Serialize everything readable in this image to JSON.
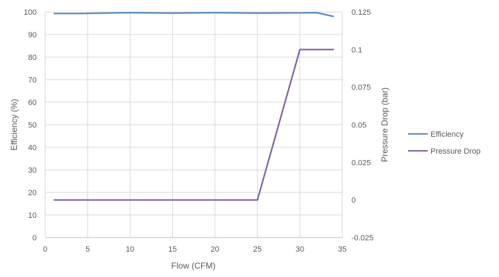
{
  "chart_data": {
    "type": "line",
    "title": "",
    "xlabel": "Flow (CFM)",
    "ylabel": "Efficiency (%)",
    "y2label": "Pressure Drop (bar)",
    "xlim": [
      0,
      35
    ],
    "ylim": [
      0,
      100
    ],
    "y2lim": [
      -0.025,
      0.125
    ],
    "x_ticks": [
      "0",
      "5",
      "10",
      "15",
      "20",
      "25",
      "30",
      "35"
    ],
    "y_ticks": [
      "0",
      "10",
      "20",
      "30",
      "40",
      "50",
      "60",
      "70",
      "80",
      "90",
      "100"
    ],
    "y2_ticks": [
      "-0.025",
      "0",
      "0.025",
      "0.05",
      "0.075",
      "0.1",
      "0.125"
    ],
    "grid": true,
    "legend_position": "right",
    "series": [
      {
        "name": "Efficiency",
        "axis": "left",
        "color": "#5b8ac6",
        "x": [
          1,
          4,
          10,
          15,
          20,
          25,
          30,
          32,
          34
        ],
        "y": [
          99.3,
          99.3,
          99.7,
          99.5,
          99.7,
          99.5,
          99.6,
          99.7,
          98.0
        ]
      },
      {
        "name": "Pressure Drop",
        "axis": "right",
        "color": "#8064a2",
        "x": [
          1,
          5,
          10,
          15,
          20,
          25,
          30,
          34
        ],
        "y": [
          0,
          0,
          0,
          0,
          0,
          0,
          0.1,
          0.1
        ]
      }
    ]
  }
}
